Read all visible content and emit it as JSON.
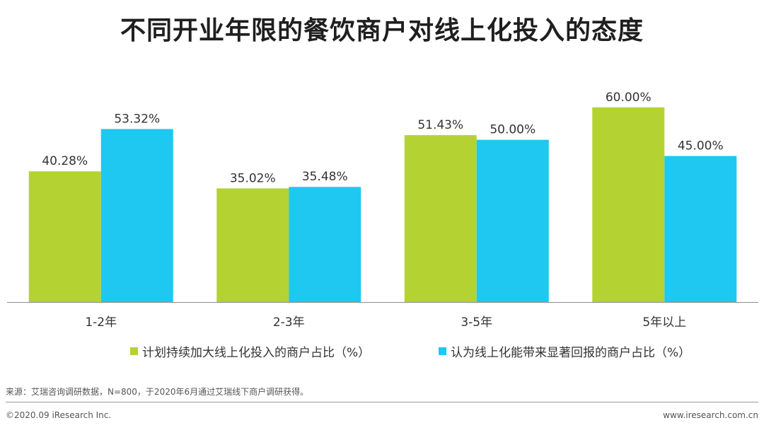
{
  "title": "不同开业年限的餐饮商户对线上化投入的态度",
  "chart_data": {
    "type": "bar",
    "title": "不同开业年限的餐饮商户对线上化投入的态度",
    "categories": [
      "1-2年",
      "2-3年",
      "3-5年",
      "5年以上"
    ],
    "series": [
      {
        "name": "计划持续加大线上化投入的商户占比（%）",
        "color": "#b4d333",
        "values": [
          40.28,
          35.02,
          51.43,
          60.0
        ],
        "labels": [
          "40.28%",
          "35.02%",
          "51.43%",
          "60.00%"
        ]
      },
      {
        "name": "认为线上化能带来显著回报的商户占比（%）",
        "color": "#1ec8f0",
        "values": [
          53.32,
          35.48,
          50.0,
          45.0
        ],
        "labels": [
          "53.32%",
          "35.48%",
          "50.00%",
          "45.00%"
        ]
      }
    ],
    "ylim": [
      0,
      80
    ],
    "xlabel": "",
    "ylabel": "",
    "grid": false,
    "legend_position": "bottom"
  },
  "source": "来源：艾瑞咨询调研数据，N=800，于2020年6月通过艾瑞线下商户调研获得。",
  "footer": {
    "copyright": "©2020.09 iResearch Inc.",
    "website": "www.iresearch.com.cn"
  },
  "colors": {
    "axis": "#8c8c8c",
    "label_text": "#333333"
  }
}
